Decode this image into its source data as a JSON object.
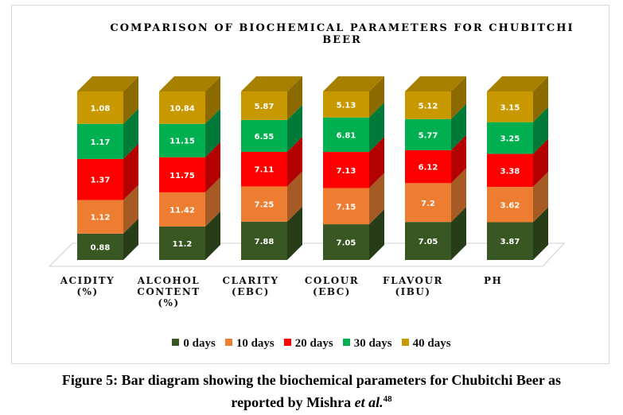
{
  "chart_data": {
    "type": "bar",
    "stacked": true,
    "three_d": true,
    "title_lines": [
      "COMPARISON OF BIOCHEMICAL PARAMETERS FOR CHUBITCHI",
      "BEER"
    ],
    "categories": [
      [
        "ACIDITY",
        "(%)"
      ],
      [
        "ALCOHOL",
        "CONTENT",
        "(%)"
      ],
      [
        "CLARITY",
        "(EBC)"
      ],
      [
        "COLOUR",
        "(EBC)"
      ],
      [
        "FLAVOUR",
        "(IBU)"
      ],
      [
        "PH"
      ]
    ],
    "series": [
      {
        "name": "0 days",
        "color": "#385723",
        "side": "#263d18",
        "top": "#2e4a1d",
        "values": [
          0.88,
          11.2,
          7.88,
          7.05,
          7.05,
          3.87
        ]
      },
      {
        "name": "10 days",
        "color": "#ed7d31",
        "side": "#a65a24",
        "top": "#c76a2a",
        "values": [
          1.12,
          11.42,
          7.25,
          7.15,
          7.2,
          3.62
        ]
      },
      {
        "name": "20 days",
        "color": "#ff0000",
        "side": "#b30000",
        "top": "#d90000",
        "values": [
          1.37,
          11.75,
          7.11,
          7.13,
          6.12,
          3.38
        ]
      },
      {
        "name": "30 days",
        "color": "#00b050",
        "side": "#007a38",
        "top": "#009443",
        "values": [
          1.17,
          11.15,
          6.55,
          6.81,
          5.77,
          3.25
        ]
      },
      {
        "name": "40 days",
        "color": "#c89800",
        "side": "#8c6a00",
        "top": "#a88000",
        "values": [
          1.08,
          10.84,
          5.87,
          5.13,
          5.12,
          3.15
        ]
      }
    ],
    "value_labels": [
      [
        "0.88",
        "11.2",
        "7.88",
        "7.05",
        "7.05",
        "3.87"
      ],
      [
        "1.12",
        "11.42",
        "7.25",
        "7.15",
        "7.2",
        "3.62"
      ],
      [
        "1.37",
        "11.75",
        "7.11",
        "7.13",
        "6.12",
        "3.38"
      ],
      [
        "1.17",
        "11.15",
        "6.55",
        "6.81",
        "5.77",
        "3.25"
      ],
      [
        "1.08",
        "10.84",
        "5.87",
        "5.13",
        "5.12",
        "3.15"
      ]
    ],
    "segment_scale": "100% stacked",
    "legend_position": "bottom",
    "grid": false
  },
  "caption": {
    "prefix": "Figure 5: Bar diagram showing the biochemical parameters for Chubitchi Beer as",
    "line2_before": "reported by Mishra ",
    "line2_italic": "et al.",
    "ref": "48"
  }
}
